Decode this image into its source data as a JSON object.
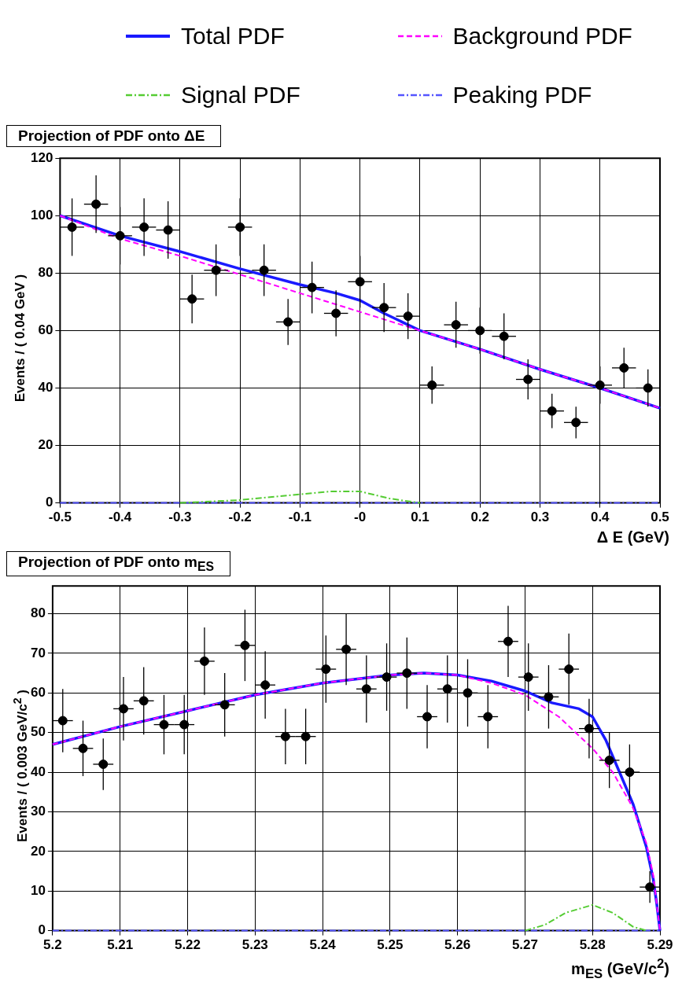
{
  "chart_data": [
    {
      "type": "scatter",
      "title": "Projection of PDF onto ΔE",
      "xlabel": "Δ E (GeV)",
      "ylabel": "Events / ( 0.04 GeV )",
      "xlim": [
        -0.5,
        0.5
      ],
      "xticks": [
        -0.5,
        -0.4,
        -0.3,
        -0.2,
        -0.1,
        {
          "value": 0,
          "label": "-0"
        },
        0.1,
        0.2,
        0.3,
        0.4,
        0.5
      ],
      "ylim": [
        0,
        120
      ],
      "yticks": [
        0,
        20,
        40,
        60,
        80,
        100,
        120
      ],
      "grid": true,
      "legend": "top",
      "series": [
        {
          "color": "#000000",
          "marker": "circle",
          "x": [
            -0.48,
            -0.44,
            -0.4,
            -0.36,
            -0.32,
            -0.28,
            -0.24,
            -0.2,
            -0.16,
            -0.12,
            -0.08,
            -0.04,
            0,
            0.04,
            0.08,
            0.12,
            0.16,
            0.2,
            0.24,
            0.28,
            0.32,
            0.36,
            0.4,
            0.44,
            0.48
          ],
          "values": [
            96,
            104,
            93,
            96,
            95,
            71,
            81,
            96,
            81,
            63,
            75,
            66,
            77,
            68,
            65,
            41,
            62,
            60,
            58,
            43,
            32,
            28,
            41,
            47,
            40
          ],
          "errors": [
            10,
            10,
            10,
            10,
            10,
            8.5,
            9,
            10,
            9,
            8,
            9,
            8,
            9,
            8.5,
            8,
            6.5,
            8,
            8,
            8,
            7,
            6,
            5.5,
            6.5,
            7,
            6.5
          ],
          "xerrors": [
            0.02,
            0.02,
            0.02,
            0.02,
            0.02,
            0.02,
            0.02,
            0.02,
            0.02,
            0.02,
            0.02,
            0.02,
            0.02,
            0.02,
            0.02,
            0.02,
            0.02,
            0.02,
            0.02,
            0.02,
            0.02,
            0.02,
            0.02,
            0.02,
            0.02
          ]
        },
        {
          "type": "line",
          "name": "Total PDF",
          "color": "#1a1aff",
          "line_style": "solid",
          "x": [
            -0.5,
            -0.4,
            -0.3,
            -0.2,
            -0.1,
            -0.04,
            0,
            0.04,
            0.08,
            0.1,
            0.2,
            0.3,
            0.4,
            0.5
          ],
          "values": [
            100,
            93,
            87.5,
            81.5,
            76,
            73,
            70.5,
            66,
            62,
            60,
            53.5,
            46.5,
            40,
            33
          ]
        },
        {
          "type": "line",
          "name": "Background PDF",
          "color": "#ff00ff",
          "line_style": "dashed",
          "x": [
            -0.5,
            -0.4,
            -0.3,
            -0.2,
            -0.1,
            0,
            0.1,
            0.2,
            0.3,
            0.4,
            0.5
          ],
          "values": [
            100,
            92,
            86,
            79.5,
            73,
            66.5,
            60,
            53.5,
            46.5,
            40,
            33
          ]
        },
        {
          "type": "line",
          "name": "Signal PDF",
          "color": "#55cc33",
          "line_style": "dotted",
          "x": [
            -0.3,
            -0.2,
            -0.1,
            -0.05,
            0,
            0.05,
            0.1
          ],
          "values": [
            0,
            1,
            3,
            4,
            4,
            1.5,
            0
          ]
        },
        {
          "type": "line",
          "name": "Peaking PDF",
          "color": "#5555ff",
          "line_style": "dotted",
          "x": [
            -0.5,
            0.5
          ],
          "values": [
            0,
            0
          ]
        }
      ]
    },
    {
      "type": "scatter",
      "title": "Projection of PDF onto m$_{ES}$",
      "xlabel": "m$_{ES}$ (GeV/c$^{2}$)",
      "ylabel": "Events / ( 0.003 GeV/c$^{2}$ )",
      "xlim": [
        5.2,
        5.29
      ],
      "xticks": [
        5.2,
        5.21,
        5.22,
        5.23,
        5.24,
        5.25,
        5.26,
        5.27,
        5.28,
        5.29
      ],
      "ylim": [
        0,
        87
      ],
      "yticks": [
        0,
        10,
        20,
        30,
        40,
        50,
        60,
        70,
        80
      ],
      "grid": true,
      "series": [
        {
          "color": "#000000",
          "marker": "circle",
          "x": [
            5.2015,
            5.2045,
            5.2075,
            5.2105,
            5.2135,
            5.2165,
            5.2195,
            5.2225,
            5.2255,
            5.2285,
            5.2315,
            5.2345,
            5.2375,
            5.2405,
            5.2435,
            5.2465,
            5.2495,
            5.2525,
            5.2555,
            5.2585,
            5.2615,
            5.2645,
            5.2675,
            5.2705,
            5.2735,
            5.2765,
            5.2795,
            5.2825,
            5.2855,
            5.2885
          ],
          "values": [
            53,
            46,
            42,
            56,
            58,
            52,
            52,
            68,
            57,
            72,
            62,
            49,
            49,
            66,
            71,
            61,
            64,
            65,
            54,
            61,
            60,
            54,
            73,
            64,
            59,
            66,
            51,
            43,
            40,
            11
          ],
          "errors": [
            8,
            7,
            6.5,
            8,
            8.5,
            7.5,
            7.5,
            8.5,
            8,
            9,
            8.5,
            7,
            7,
            8.5,
            9,
            8.5,
            8.5,
            9,
            8,
            8.5,
            8.5,
            8,
            9,
            8.5,
            8,
            9,
            7.5,
            7,
            7,
            4
          ],
          "xerrors": [
            0.0015,
            0.0015,
            0.0015,
            0.0015,
            0.0015,
            0.0015,
            0.0015,
            0.0015,
            0.0015,
            0.0015,
            0.0015,
            0.0015,
            0.0015,
            0.0015,
            0.0015,
            0.0015,
            0.0015,
            0.0015,
            0.0015,
            0.0015,
            0.0015,
            0.0015,
            0.0015,
            0.0015,
            0.0015,
            0.0015,
            0.0015,
            0.0015,
            0.0015,
            0.0015
          ]
        },
        {
          "type": "line",
          "color": "#1a1aff",
          "line_style": "solid",
          "x": [
            5.2,
            5.21,
            5.22,
            5.23,
            5.24,
            5.25,
            5.255,
            5.26,
            5.265,
            5.27,
            5.274,
            5.278,
            5.28,
            5.282,
            5.284,
            5.286,
            5.288,
            5.289,
            5.2895,
            5.29
          ],
          "values": [
            47,
            51.5,
            55.5,
            59.5,
            62.5,
            64.5,
            65,
            64.5,
            63,
            60.5,
            57.5,
            56,
            54,
            48,
            40,
            32,
            21,
            13,
            7,
            0
          ]
        },
        {
          "type": "line",
          "color": "#ff00ff",
          "line_style": "dashed",
          "x": [
            5.2,
            5.21,
            5.22,
            5.23,
            5.24,
            5.25,
            5.255,
            5.26,
            5.265,
            5.27,
            5.275,
            5.28,
            5.283,
            5.286,
            5.288,
            5.289,
            5.29
          ],
          "values": [
            47,
            51.5,
            55.5,
            59.5,
            62.5,
            64.5,
            65,
            64.5,
            62.5,
            59.5,
            54,
            46,
            40,
            31,
            22,
            14,
            0
          ]
        },
        {
          "type": "line",
          "color": "#55cc33",
          "line_style": "dotted",
          "x": [
            5.27,
            5.273,
            5.276,
            5.28,
            5.283,
            5.286,
            5.288
          ],
          "values": [
            0,
            1.5,
            4.5,
            6.5,
            4.5,
            1,
            0
          ]
        },
        {
          "type": "line",
          "color": "#5555ff",
          "line_style": "dotted",
          "x": [
            5.2,
            5.29
          ],
          "values": [
            0,
            0
          ]
        }
      ]
    }
  ]
}
